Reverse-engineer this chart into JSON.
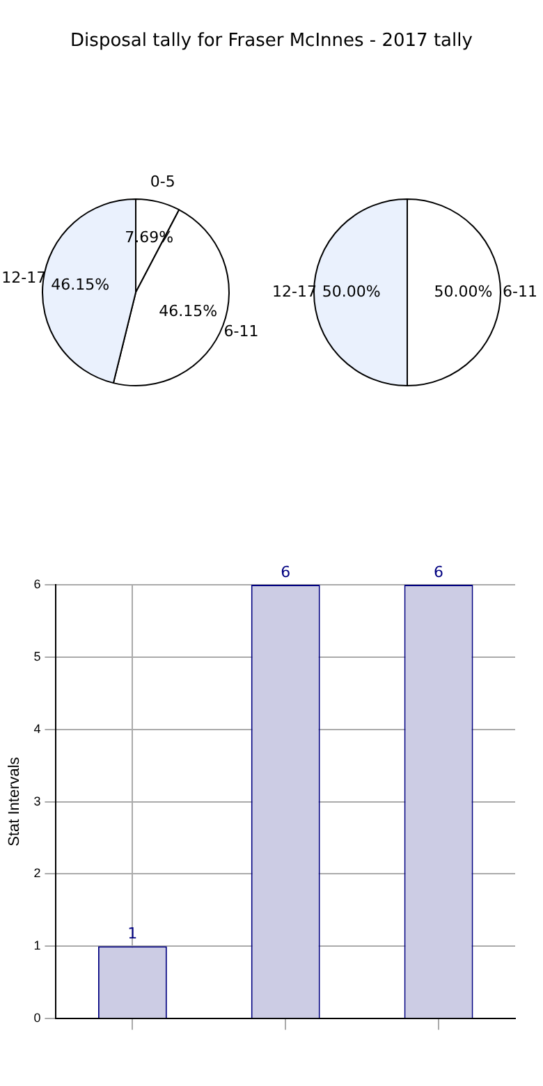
{
  "chart_data": [
    {
      "type": "pie",
      "title": "Disposal tally for Fraser McInnes - 2017 tally",
      "categories": [
        "0-5",
        "6-11",
        "12-17"
      ],
      "values": [
        7.69,
        46.15,
        46.15
      ],
      "value_labels": [
        "7.69%",
        "46.15%",
        "46.15%"
      ],
      "colors": [
        "#ffffff",
        "#ffffff",
        "#eaf1fd"
      ]
    },
    {
      "type": "pie",
      "categories": [
        "6-11",
        "12-17"
      ],
      "values": [
        50,
        50
      ],
      "value_labels": [
        "50.00%",
        "50.00%"
      ],
      "colors": [
        "#ffffff",
        "#eaf1fd"
      ]
    },
    {
      "type": "bar",
      "categories": [
        null,
        null,
        null
      ],
      "values": [
        1,
        6,
        6
      ],
      "color": "#cccce4",
      "ylabel": "Stat Intervals",
      "ylim": [
        0,
        6
      ],
      "yticks": [
        0,
        1,
        2,
        3,
        4,
        5,
        6
      ],
      "grid": true,
      "data_labels": true
    }
  ]
}
